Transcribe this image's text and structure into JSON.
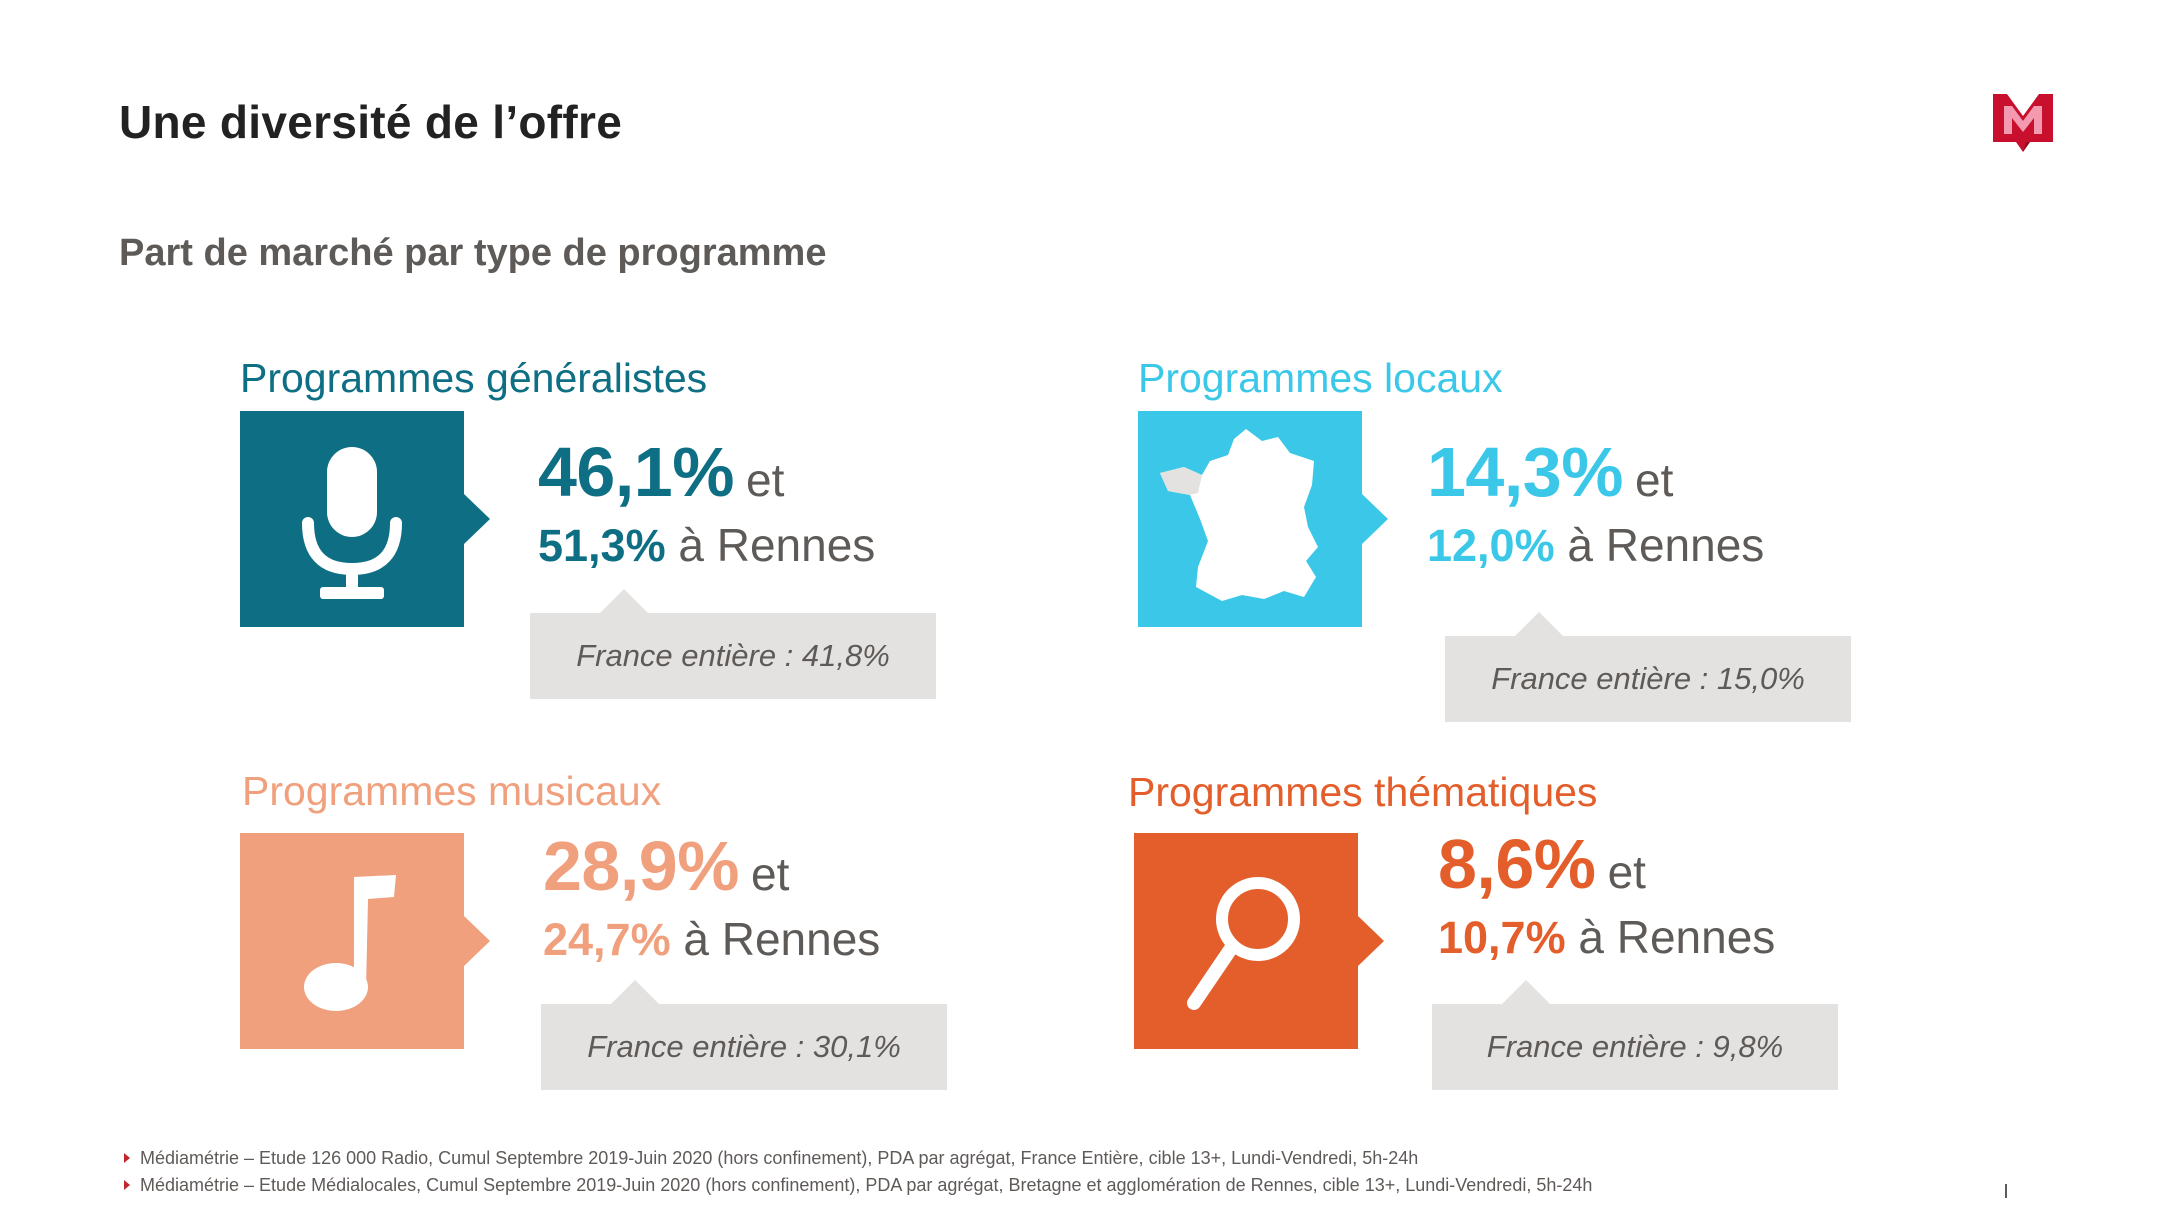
{
  "title": "Une diversité de l’offre",
  "subtitle": "Part de marché par type de programme",
  "colors": {
    "teal": "#0e6e84",
    "cyan": "#3bc8e8",
    "salmon": "#f0a07c",
    "orange": "#e35e2a",
    "logo_red": "#c8102e",
    "text_gray": "#5e5a58",
    "callout_bg": "#e4e2e0"
  },
  "categories": [
    {
      "label": "Programmes généralistes",
      "icon": "microphone-icon",
      "national": "46,1%",
      "joiner": "et",
      "rennes": "51,3%",
      "rennes_suffix": "à Rennes",
      "france": "France entière : 41,8%"
    },
    {
      "label": "Programmes locaux",
      "icon": "france-map-icon",
      "national": "14,3%",
      "joiner": "et",
      "rennes": "12,0%",
      "rennes_suffix": "à Rennes",
      "france": "France entière : 15,0%"
    },
    {
      "label": "Programmes musicaux",
      "icon": "music-note-icon",
      "national": "28,9%",
      "joiner": "et",
      "rennes": "24,7%",
      "rennes_suffix": "à Rennes",
      "france": "France entière : 30,1%"
    },
    {
      "label": "Programmes thématiques",
      "icon": "magnifier-icon",
      "national": "8,6%",
      "joiner": "et",
      "rennes": "10,7%",
      "rennes_suffix": "à Rennes",
      "france": "France entière : 9,8%"
    }
  ],
  "footnotes": [
    "Médiamétrie – Etude 126 000 Radio, Cumul Septembre 2019-Juin 2020 (hors confinement), PDA par agrégat, France Entière, cible 13+, Lundi-Vendredi, 5h-24h",
    "Médiamétrie – Etude Médialocales, Cumul Septembre 2019-Juin 2020 (hors confinement), PDA par agrégat, Bretagne et agglomération de Rennes, cible 13+, Lundi-Vendredi, 5h-24h"
  ]
}
